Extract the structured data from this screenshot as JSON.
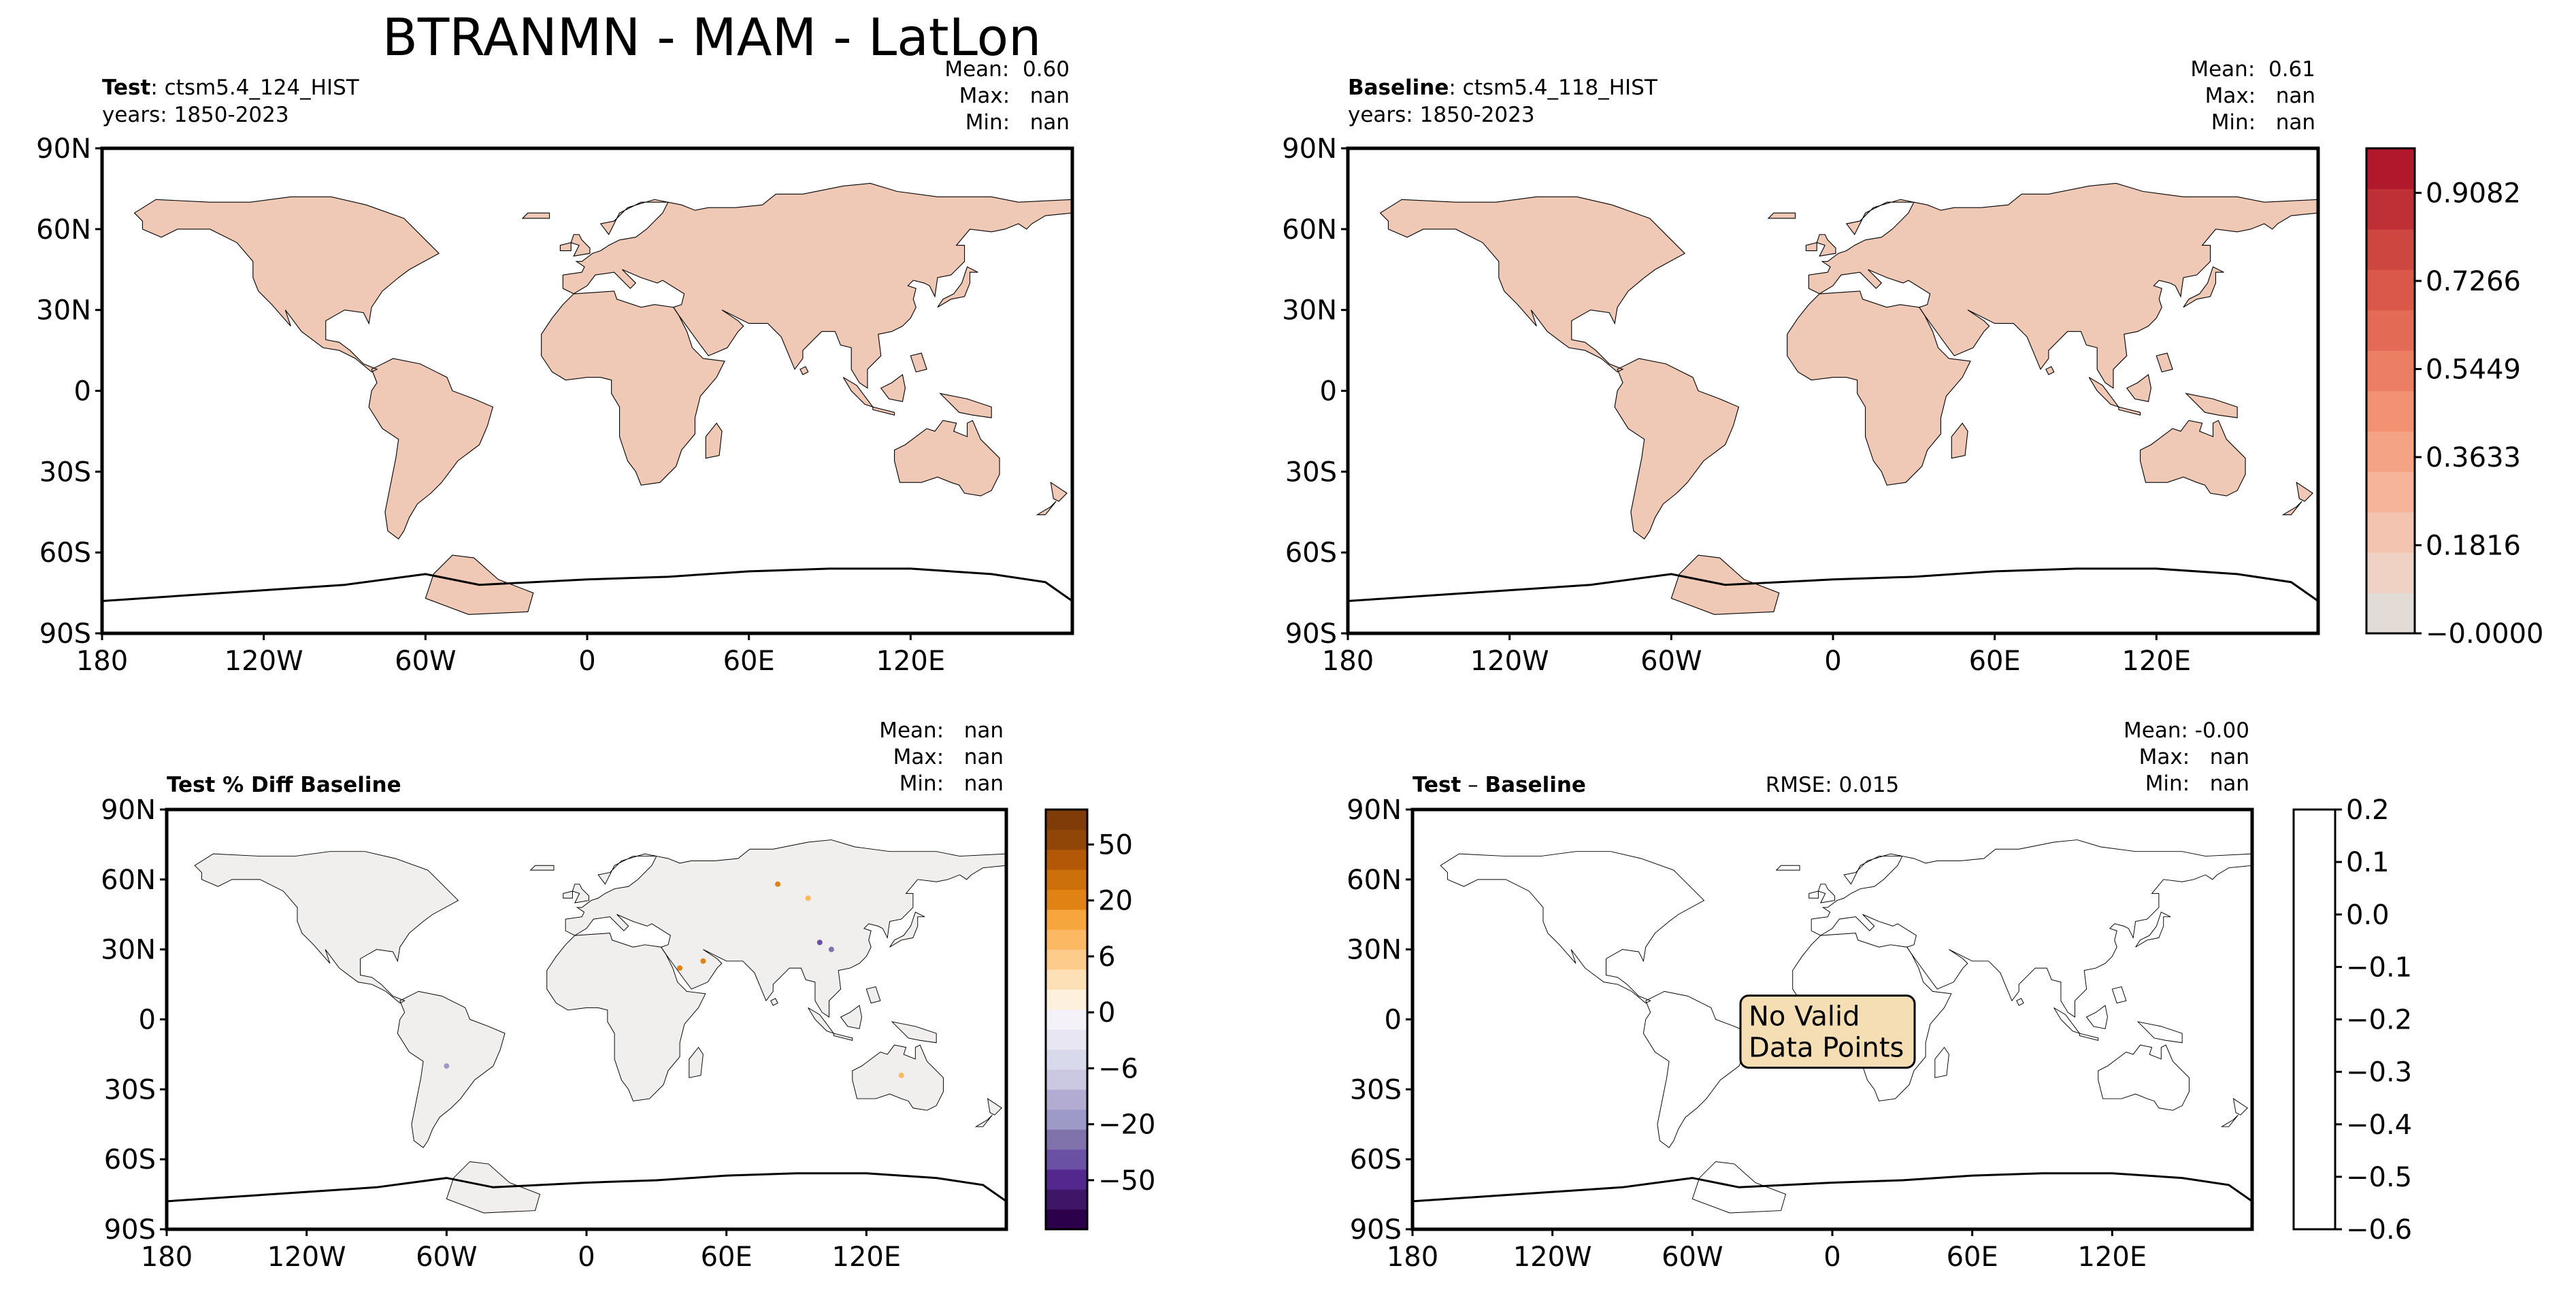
{
  "figure": {
    "title": "BTRANMN - MAM - LatLon"
  },
  "panels": {
    "test": {
      "label_bold": "Test",
      "label_rest": ": ctsm5.4_124_HIST",
      "years": "years: 1850-2023",
      "stats": [
        "Mean:  0.60",
        "Max:   nan",
        "Min:   nan"
      ]
    },
    "baseline": {
      "label_bold": "Baseline",
      "label_rest": ": ctsm5.4_118_HIST",
      "years": "years: 1850-2023",
      "stats": [
        "Mean:  0.61",
        "Max:   nan",
        "Min:   nan"
      ]
    },
    "pctdiff": {
      "label_bold": "Test % Diff Baseline",
      "stats": [
        "Mean:   nan",
        "Max:   nan",
        "Min:   nan"
      ]
    },
    "diff": {
      "label_bold": "Test",
      "label_sep": " – ",
      "label_bold2": "Baseline",
      "rmse": "RMSE: 0.015",
      "stats": [
        "Mean: -0.00",
        "Max:   nan",
        "Min:   nan"
      ],
      "no_data": [
        "No Valid",
        "Data Points"
      ]
    }
  },
  "axes": {
    "lat_ticks": [
      "90N",
      "60N",
      "30N",
      "0",
      "30S",
      "60S",
      "90S"
    ],
    "lon_ticks": [
      "180",
      "120W",
      "60W",
      "0",
      "60E",
      "120E"
    ]
  },
  "colorbars": {
    "main": {
      "ticks": [
        "0.9082",
        "0.7266",
        "0.5449",
        "0.3633",
        "0.1816",
        "−0.0000"
      ],
      "colors": [
        "#e3dbd6",
        "#f0d2c4",
        "#f3c4af",
        "#f6b59a",
        "#f5a385",
        "#f29272",
        "#ec7f63",
        "#e36b55",
        "#d9584a",
        "#cd4640",
        "#bf3036",
        "#b2182b"
      ]
    },
    "pctdiff": {
      "ticks": [
        "50",
        "20",
        "6",
        "0",
        "−6",
        "−20",
        "−50"
      ],
      "colors": [
        "#2d004b",
        "#3f1568",
        "#54278f",
        "#6a51a3",
        "#8073ac",
        "#9e9ac8",
        "#b2abd2",
        "#cbc9e2",
        "#d8daeb",
        "#e8e6f2",
        "#f4f2f8",
        "#fdf0dc",
        "#fee0b6",
        "#fdcc8a",
        "#fdb863",
        "#f6a63c",
        "#e08214",
        "#cc700c",
        "#b35806",
        "#8f4606",
        "#7f3b08"
      ]
    },
    "diff": {
      "ticks": [
        "0.2",
        "0.1",
        "0.0",
        "−0.1",
        "−0.2",
        "−0.3",
        "−0.4",
        "−0.5",
        "−0.6"
      ]
    }
  }
}
